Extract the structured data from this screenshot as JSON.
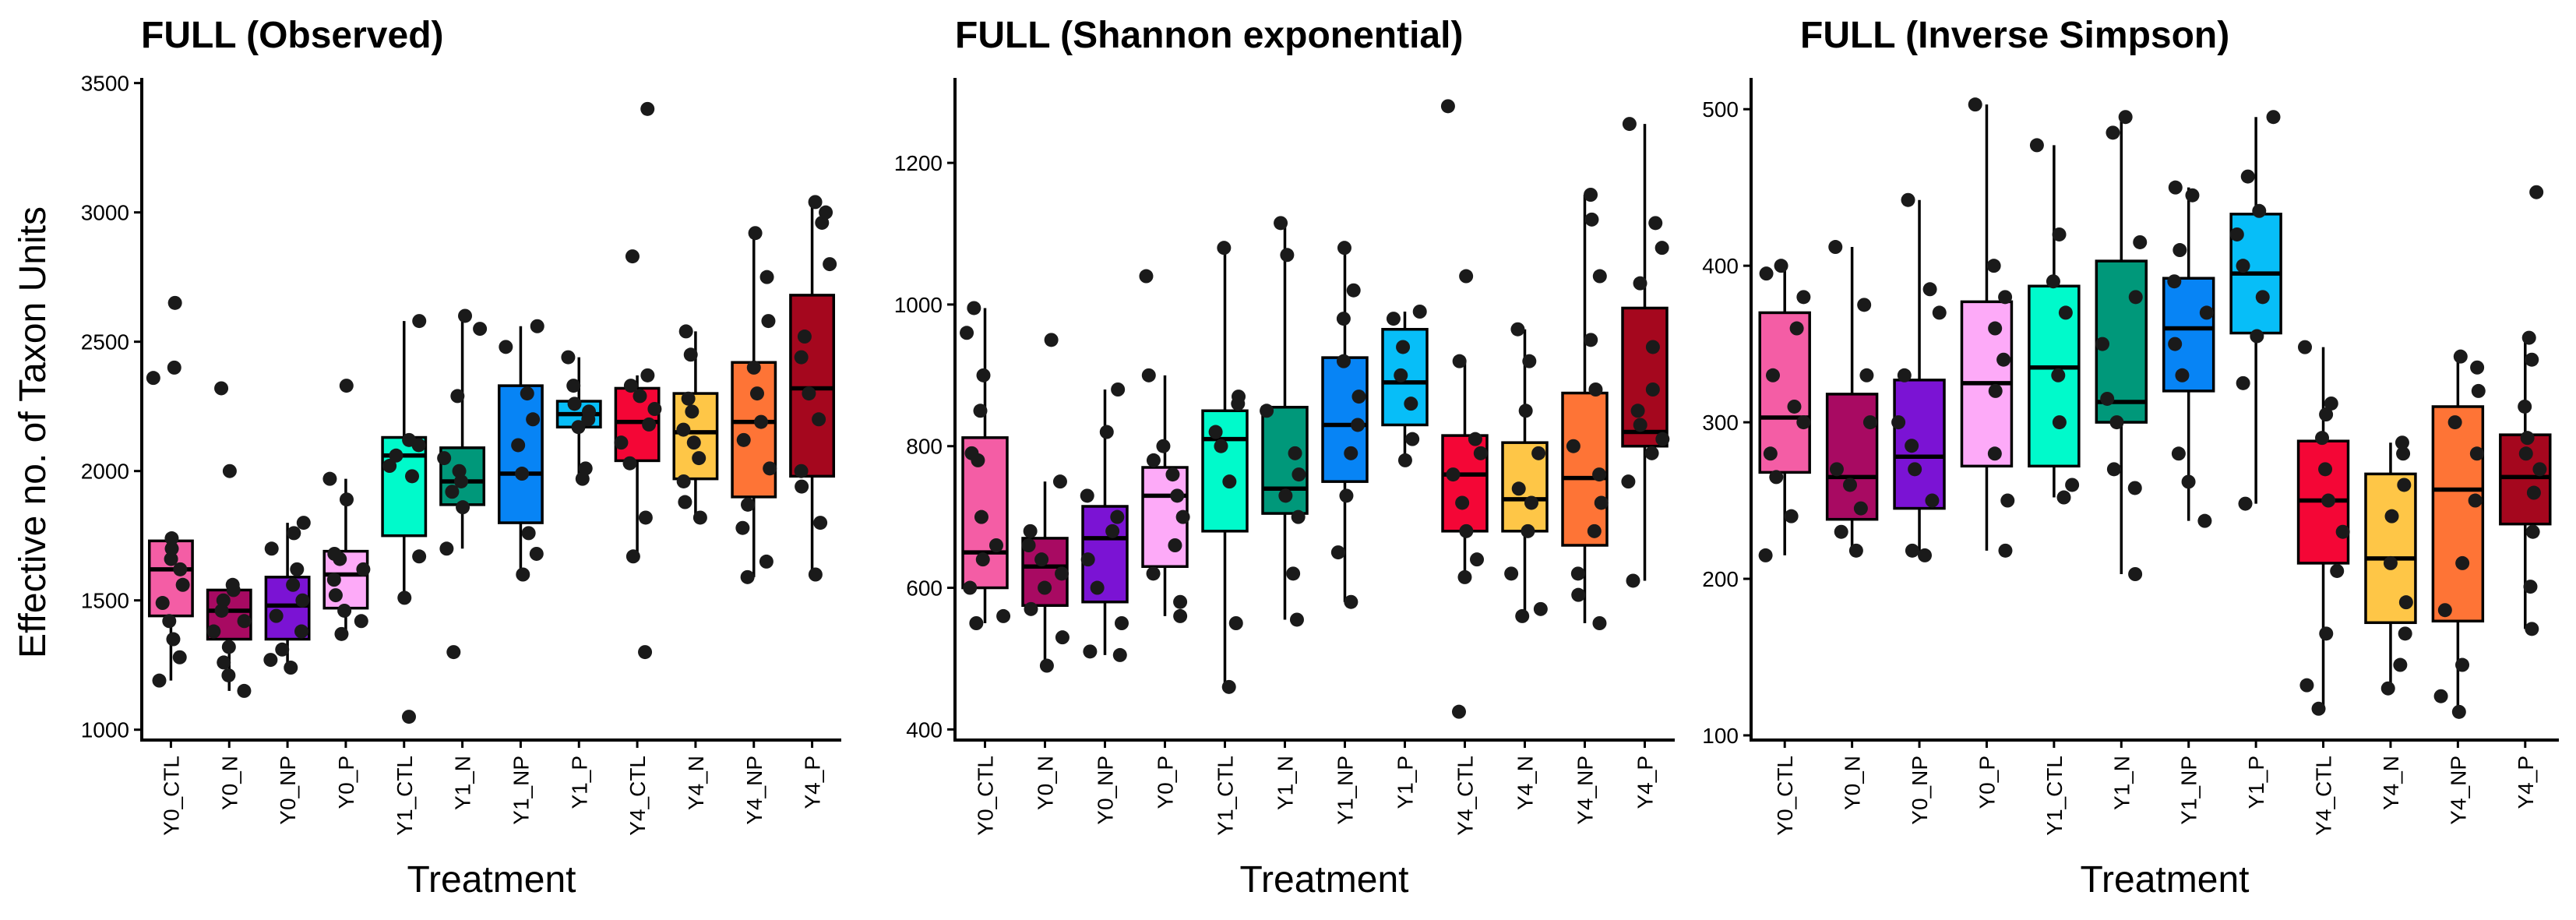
{
  "chart_data": [
    {
      "type": "boxplot",
      "title": "FULL (Observed)",
      "xlabel": "Treatment",
      "ylabel": "Effective no. of Taxon Units",
      "ylim": [
        960,
        3520
      ],
      "yticks": [
        1000,
        1500,
        2000,
        2500,
        3000,
        3500
      ],
      "categories": [
        "Y0_CTL",
        "Y0_N",
        "Y0_NP",
        "Y0_P",
        "Y1_CTL",
        "Y1_N",
        "Y1_NP",
        "Y1_P",
        "Y4_CTL",
        "Y4_N",
        "Y4_NP",
        "Y4_P"
      ],
      "colors": [
        "#F45DA5",
        "#A80A62",
        "#7B13D4",
        "#FDAAF8",
        "#00FACB",
        "#00987A",
        "#0784F5",
        "#07BEF8",
        "#F40636",
        "#FEC647",
        "#FE7436",
        "#A5071E"
      ],
      "boxes": [
        {
          "min": 1190,
          "q1": 1440,
          "median": 1620,
          "q3": 1730,
          "max": 1740,
          "points": [
            1190,
            1280,
            1350,
            1420,
            1490,
            1560,
            1620,
            1660,
            1700,
            1740,
            2360,
            2400,
            2650
          ]
        },
        {
          "min": 1150,
          "q1": 1350,
          "median": 1460,
          "q3": 1540,
          "max": 1580,
          "points": [
            1150,
            1210,
            1260,
            1320,
            1380,
            1420,
            1460,
            1500,
            1540,
            1560,
            2000,
            2320
          ]
        },
        {
          "min": 1240,
          "q1": 1350,
          "median": 1480,
          "q3": 1590,
          "max": 1800,
          "points": [
            1240,
            1270,
            1310,
            1380,
            1440,
            1500,
            1560,
            1620,
            1700,
            1760,
            1800
          ]
        },
        {
          "min": 1370,
          "q1": 1470,
          "median": 1600,
          "q3": 1690,
          "max": 1970,
          "points": [
            1370,
            1420,
            1460,
            1520,
            1580,
            1620,
            1660,
            1680,
            1890,
            1970,
            2330
          ]
        },
        {
          "min": 1510,
          "q1": 1750,
          "median": 2060,
          "q3": 2130,
          "max": 2580,
          "points": [
            1050,
            1510,
            1670,
            1980,
            2020,
            2060,
            2100,
            2120,
            2580
          ]
        },
        {
          "min": 1700,
          "q1": 1870,
          "median": 1960,
          "q3": 2090,
          "max": 2600,
          "points": [
            1300,
            1700,
            1860,
            1920,
            1960,
            2000,
            2050,
            2290,
            2550,
            2600
          ]
        },
        {
          "min": 1600,
          "q1": 1800,
          "median": 1990,
          "q3": 2330,
          "max": 2560,
          "points": [
            1600,
            1680,
            1760,
            1990,
            2100,
            2200,
            2300,
            2480,
            2560
          ]
        },
        {
          "min": 1970,
          "q1": 2170,
          "median": 2220,
          "q3": 2270,
          "max": 2440,
          "points": [
            1970,
            2010,
            2170,
            2200,
            2230,
            2260,
            2330,
            2440
          ]
        },
        {
          "min": 1670,
          "q1": 2040,
          "median": 2190,
          "q3": 2320,
          "max": 2370,
          "points": [
            1300,
            1670,
            1820,
            2030,
            2110,
            2180,
            2240,
            2290,
            2330,
            2370,
            2830,
            3400
          ]
        },
        {
          "min": 1820,
          "q1": 1970,
          "median": 2150,
          "q3": 2300,
          "max": 2540,
          "points": [
            1820,
            1880,
            1960,
            2050,
            2110,
            2160,
            2230,
            2280,
            2450,
            2540
          ]
        },
        {
          "min": 1590,
          "q1": 1900,
          "median": 2190,
          "q3": 2420,
          "max": 2920,
          "points": [
            1590,
            1650,
            1780,
            1870,
            2010,
            2120,
            2190,
            2300,
            2400,
            2580,
            2750,
            2920
          ]
        },
        {
          "min": 1600,
          "q1": 1980,
          "median": 2320,
          "q3": 2680,
          "max": 3040,
          "points": [
            1600,
            1800,
            1940,
            2000,
            2200,
            2300,
            2440,
            2520,
            2800,
            2960,
            3000,
            3040
          ]
        }
      ]
    },
    {
      "type": "boxplot",
      "title": "FULL (Shannon exponential)",
      "xlabel": "Treatment",
      "ylabel": "",
      "ylim": [
        385,
        1320
      ],
      "yticks": [
        400,
        600,
        800,
        1000,
        1200
      ],
      "categories": [
        "Y0_CTL",
        "Y0_N",
        "Y0_NP",
        "Y0_P",
        "Y1_CTL",
        "Y1_N",
        "Y1_NP",
        "Y1_P",
        "Y4_CTL",
        "Y4_N",
        "Y4_NP",
        "Y4_P"
      ],
      "colors": [
        "#F45DA5",
        "#A80A62",
        "#7B13D4",
        "#FDAAF8",
        "#00FACB",
        "#00987A",
        "#0784F5",
        "#07BEF8",
        "#F40636",
        "#FEC647",
        "#FE7436",
        "#A5071E"
      ],
      "boxes": [
        {
          "min": 550,
          "q1": 600,
          "median": 650,
          "q3": 812,
          "max": 995,
          "points": [
            550,
            560,
            600,
            640,
            660,
            700,
            780,
            790,
            850,
            900,
            960,
            995
          ]
        },
        {
          "min": 490,
          "q1": 575,
          "median": 630,
          "q3": 670,
          "max": 750,
          "points": [
            490,
            530,
            570,
            600,
            620,
            640,
            660,
            680,
            750,
            950
          ]
        },
        {
          "min": 505,
          "q1": 580,
          "median": 670,
          "q3": 715,
          "max": 880,
          "points": [
            505,
            510,
            550,
            600,
            640,
            680,
            700,
            730,
            820,
            880
          ]
        },
        {
          "min": 560,
          "q1": 630,
          "median": 730,
          "q3": 770,
          "max": 900,
          "points": [
            560,
            580,
            620,
            660,
            700,
            730,
            760,
            780,
            800,
            900,
            1040
          ]
        },
        {
          "min": 460,
          "q1": 680,
          "median": 810,
          "q3": 850,
          "max": 1080,
          "points": [
            460,
            550,
            750,
            800,
            820,
            860,
            870,
            1080
          ]
        },
        {
          "min": 555,
          "q1": 705,
          "median": 740,
          "q3": 855,
          "max": 1115,
          "points": [
            555,
            620,
            700,
            730,
            760,
            790,
            850,
            1070,
            1115
          ]
        },
        {
          "min": 580,
          "q1": 750,
          "median": 830,
          "q3": 925,
          "max": 1080,
          "points": [
            580,
            650,
            730,
            790,
            830,
            870,
            920,
            980,
            1020,
            1080
          ]
        },
        {
          "min": 780,
          "q1": 830,
          "median": 890,
          "q3": 965,
          "max": 990,
          "points": [
            780,
            810,
            860,
            900,
            940,
            980,
            990
          ]
        },
        {
          "min": 615,
          "q1": 680,
          "median": 760,
          "q3": 815,
          "max": 920,
          "points": [
            425,
            615,
            640,
            680,
            720,
            760,
            790,
            810,
            920,
            1040,
            1280
          ]
        },
        {
          "min": 560,
          "q1": 680,
          "median": 725,
          "q3": 805,
          "max": 965,
          "points": [
            560,
            570,
            620,
            680,
            720,
            740,
            790,
            850,
            920,
            965
          ]
        },
        {
          "min": 550,
          "q1": 660,
          "median": 755,
          "q3": 875,
          "max": 1155,
          "points": [
            550,
            590,
            620,
            680,
            720,
            760,
            800,
            880,
            950,
            1040,
            1120,
            1155
          ]
        },
        {
          "min": 610,
          "q1": 800,
          "median": 820,
          "q3": 995,
          "max": 1255,
          "points": [
            610,
            750,
            790,
            810,
            830,
            850,
            880,
            940,
            1030,
            1080,
            1115,
            1255
          ]
        }
      ]
    },
    {
      "type": "boxplot",
      "title": "FULL (Inverse Simpson)",
      "xlabel": "Treatment",
      "ylabel": "",
      "ylim": [
        97,
        520
      ],
      "yticks": [
        100,
        200,
        300,
        400,
        500
      ],
      "categories": [
        "Y0_CTL",
        "Y0_N",
        "Y0_NP",
        "Y0_P",
        "Y1_CTL",
        "Y1_N",
        "Y1_NP",
        "Y1_P",
        "Y4_CTL",
        "Y4_N",
        "Y4_NP",
        "Y4_P"
      ],
      "colors": [
        "#F45DA5",
        "#A80A62",
        "#7B13D4",
        "#FDAAF8",
        "#00FACB",
        "#00987A",
        "#0784F5",
        "#07BEF8",
        "#F40636",
        "#FEC647",
        "#FE7436",
        "#A5071E"
      ],
      "boxes": [
        {
          "min": 215,
          "q1": 268,
          "median": 303,
          "q3": 370,
          "max": 400,
          "points": [
            215,
            240,
            265,
            280,
            300,
            310,
            330,
            360,
            380,
            395,
            400
          ]
        },
        {
          "min": 218,
          "q1": 238,
          "median": 265,
          "q3": 318,
          "max": 412,
          "points": [
            218,
            230,
            245,
            260,
            270,
            300,
            330,
            375,
            412
          ]
        },
        {
          "min": 215,
          "q1": 245,
          "median": 278,
          "q3": 327,
          "max": 442,
          "points": [
            215,
            218,
            250,
            270,
            285,
            300,
            330,
            370,
            385,
            442
          ]
        },
        {
          "min": 218,
          "q1": 272,
          "median": 325,
          "q3": 377,
          "max": 503,
          "points": [
            218,
            250,
            280,
            320,
            340,
            360,
            380,
            400,
            503
          ]
        },
        {
          "min": 252,
          "q1": 272,
          "median": 335,
          "q3": 387,
          "max": 477,
          "points": [
            252,
            260,
            300,
            330,
            370,
            390,
            420,
            477
          ]
        },
        {
          "min": 203,
          "q1": 300,
          "median": 313,
          "q3": 403,
          "max": 495,
          "points": [
            203,
            258,
            270,
            300,
            315,
            350,
            380,
            415,
            485,
            495
          ]
        },
        {
          "min": 237,
          "q1": 320,
          "median": 360,
          "q3": 392,
          "max": 450,
          "points": [
            237,
            262,
            280,
            330,
            350,
            370,
            390,
            410,
            445,
            450
          ]
        },
        {
          "min": 248,
          "q1": 357,
          "median": 395,
          "q3": 433,
          "max": 495,
          "points": [
            248,
            325,
            355,
            380,
            400,
            420,
            435,
            457,
            495
          ]
        },
        {
          "min": 117,
          "q1": 210,
          "median": 250,
          "q3": 288,
          "max": 348,
          "points": [
            117,
            132,
            165,
            205,
            230,
            250,
            270,
            290,
            305,
            312,
            348
          ]
        },
        {
          "min": 130,
          "q1": 172,
          "median": 213,
          "q3": 267,
          "max": 287,
          "points": [
            130,
            145,
            165,
            185,
            210,
            240,
            260,
            280,
            287
          ]
        },
        {
          "min": 115,
          "q1": 173,
          "median": 257,
          "q3": 310,
          "max": 342,
          "points": [
            115,
            125,
            145,
            180,
            210,
            250,
            280,
            300,
            320,
            335,
            342
          ]
        },
        {
          "min": 168,
          "q1": 235,
          "median": 265,
          "q3": 292,
          "max": 354,
          "points": [
            168,
            195,
            230,
            255,
            270,
            280,
            290,
            310,
            340,
            354,
            447
          ]
        }
      ]
    }
  ]
}
